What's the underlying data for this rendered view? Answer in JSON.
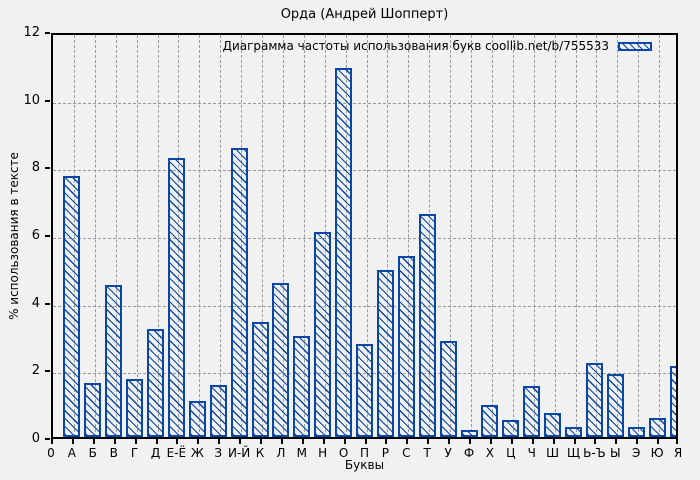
{
  "page": {
    "title": "Орда (Андрей Шопперт)"
  },
  "chart_data": {
    "type": "bar",
    "title": "Орда (Андрей Шопперт)",
    "legend": "Диаграмма частоты использования букв coollib.net/b/755533",
    "legend_position": "top-right",
    "xlabel": "Буквы",
    "ylabel": "% использования в тексте",
    "origin_tick_label": "0",
    "ylim": [
      0,
      12
    ],
    "yticks": [
      0,
      2,
      4,
      6,
      8,
      10,
      12
    ],
    "grid": true,
    "categories": [
      "А",
      "Б",
      "В",
      "Г",
      "Д",
      "Е-Ё",
      "Ж",
      "З",
      "И-Й",
      "К",
      "Л",
      "М",
      "Н",
      "О",
      "П",
      "Р",
      "С",
      "Т",
      "У",
      "Ф",
      "Х",
      "Ц",
      "Ч",
      "Ш",
      "Щ",
      "Ь-Ъ",
      "Ы",
      "Э",
      "Ю",
      "Я"
    ],
    "values": [
      7.7,
      1.6,
      4.5,
      1.7,
      3.2,
      8.25,
      1.05,
      1.55,
      8.55,
      3.4,
      4.55,
      3.0,
      6.05,
      10.9,
      2.75,
      4.95,
      5.35,
      6.6,
      2.85,
      0.2,
      0.95,
      0.5,
      1.5,
      0.7,
      0.3,
      2.2,
      1.85,
      0.3,
      0.55,
      2.1
    ],
    "colors": {
      "bar": "#0846a8",
      "background": "#f1f1f1",
      "grid": "#999999",
      "frame": "#000000",
      "text": "#000000"
    }
  }
}
